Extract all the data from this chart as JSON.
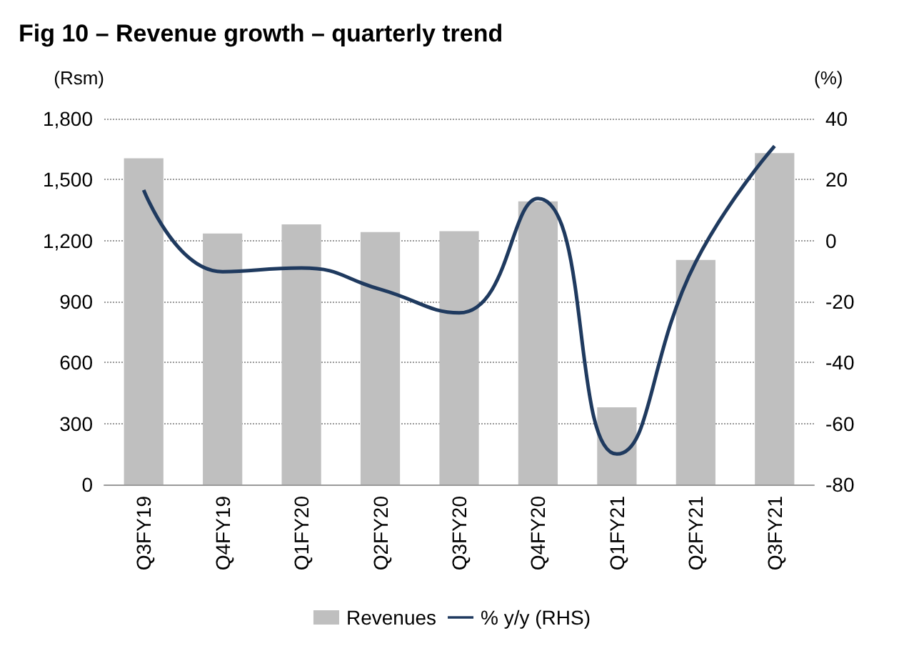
{
  "chart_data": {
    "type": "bar",
    "title": "Fig 10 – Revenue growth – quarterly trend",
    "ylabel": "(Rsm)",
    "y2label": "(%)",
    "categories": [
      "Q3FY19",
      "Q4FY19",
      "Q1FY20",
      "Q2FY20",
      "Q3FY20",
      "Q4FY20",
      "Q1FY21",
      "Q2FY21",
      "Q3FY21"
    ],
    "series": [
      {
        "name": "Revenues",
        "color": "#bfbfbf",
        "values": [
          1605,
          1235,
          1280,
          1242,
          1246,
          1393,
          380,
          1105,
          1630
        ]
      },
      {
        "name": "% y/y (RHS)",
        "type": "line",
        "axis": "y2",
        "color": "#1f3a5f",
        "values": [
          16.6,
          -10.2,
          -9,
          -16,
          -23.7,
          13.8,
          -70,
          -7,
          31
        ]
      }
    ],
    "ylim": [
      0,
      1800
    ],
    "yticks": [
      0,
      300,
      600,
      900,
      {
        "value": 1200,
        "label": "1,200"
      },
      {
        "value": 1500,
        "label": "1,500"
      },
      {
        "value": 1800,
        "label": "1,800"
      }
    ],
    "y2lim": [
      -80,
      40
    ],
    "y2ticks": [
      -80,
      -60,
      -40,
      -20,
      0,
      20,
      40
    ],
    "grid": "y",
    "legend": "bottom",
    "marker": "none",
    "line_style": "solid"
  }
}
